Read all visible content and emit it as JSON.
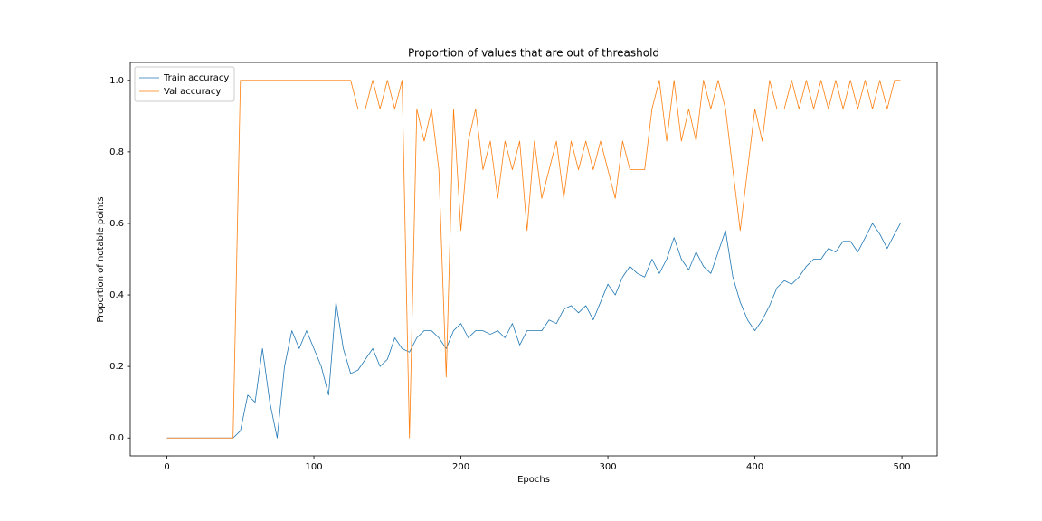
{
  "chart_data": {
    "type": "line",
    "title": "Proportion of values that are out of threashold",
    "x_label": "Epochs",
    "y_label": "Proportion of notable points",
    "x": [
      0,
      5,
      10,
      15,
      20,
      25,
      30,
      35,
      40,
      45,
      50,
      55,
      60,
      65,
      70,
      75,
      80,
      85,
      90,
      95,
      100,
      105,
      110,
      115,
      120,
      125,
      130,
      135,
      140,
      145,
      150,
      155,
      160,
      165,
      170,
      175,
      180,
      185,
      190,
      195,
      200,
      205,
      210,
      215,
      220,
      225,
      230,
      235,
      240,
      245,
      250,
      255,
      260,
      265,
      270,
      275,
      280,
      285,
      290,
      295,
      300,
      305,
      310,
      315,
      320,
      325,
      330,
      335,
      340,
      345,
      350,
      355,
      360,
      365,
      370,
      375,
      380,
      385,
      390,
      395,
      400,
      405,
      410,
      415,
      420,
      425,
      430,
      435,
      440,
      445,
      450,
      455,
      460,
      465,
      470,
      475,
      480,
      485,
      490,
      495,
      499
    ],
    "series": [
      {
        "name": "Train accuracy",
        "color": "#1f77b4",
        "values": [
          0,
          0,
          0,
          0,
          0,
          0,
          0,
          0,
          0,
          0,
          0.02,
          0.12,
          0.1,
          0.25,
          0.1,
          0,
          0.2,
          0.3,
          0.25,
          0.3,
          0.25,
          0.2,
          0.12,
          0.38,
          0.25,
          0.18,
          0.19,
          0.22,
          0.25,
          0.2,
          0.22,
          0.28,
          0.25,
          0.24,
          0.28,
          0.3,
          0.3,
          0.28,
          0.25,
          0.3,
          0.32,
          0.28,
          0.3,
          0.3,
          0.29,
          0.3,
          0.28,
          0.32,
          0.26,
          0.3,
          0.3,
          0.3,
          0.33,
          0.32,
          0.36,
          0.37,
          0.35,
          0.37,
          0.33,
          0.38,
          0.43,
          0.4,
          0.45,
          0.48,
          0.46,
          0.45,
          0.5,
          0.46,
          0.5,
          0.56,
          0.5,
          0.47,
          0.52,
          0.48,
          0.46,
          0.52,
          0.58,
          0.45,
          0.38,
          0.33,
          0.3,
          0.33,
          0.37,
          0.42,
          0.44,
          0.43,
          0.45,
          0.48,
          0.5,
          0.5,
          0.53,
          0.52,
          0.55,
          0.55,
          0.52,
          0.56,
          0.6,
          0.57,
          0.53,
          0.57,
          0.6
        ]
      },
      {
        "name": "Val accuracy",
        "color": "#ff7f0e",
        "values": [
          0,
          0,
          0,
          0,
          0,
          0,
          0,
          0,
          0,
          0,
          1,
          1,
          1,
          1,
          1,
          1,
          1,
          1,
          1,
          1,
          1,
          1,
          1,
          1,
          1,
          1,
          0.92,
          0.92,
          1,
          0.92,
          1,
          0.92,
          1,
          0,
          0.92,
          0.83,
          0.92,
          0.75,
          0.17,
          0.92,
          0.58,
          0.83,
          0.92,
          0.75,
          0.83,
          0.67,
          0.83,
          0.75,
          0.83,
          0.58,
          0.83,
          0.67,
          0.75,
          0.83,
          0.67,
          0.83,
          0.75,
          0.83,
          0.75,
          0.83,
          0.75,
          0.67,
          0.83,
          0.75,
          0.75,
          0.75,
          0.92,
          1,
          0.83,
          1,
          0.83,
          0.92,
          0.83,
          1,
          0.92,
          1,
          0.92,
          0.75,
          0.58,
          0.75,
          0.92,
          0.83,
          1,
          0.92,
          0.92,
          1,
          0.92,
          1,
          0.92,
          1,
          0.92,
          1,
          0.92,
          1,
          0.92,
          1,
          0.92,
          1,
          0.92,
          1,
          1
        ]
      }
    ],
    "xlim": [
      -24.95,
      523.95
    ],
    "ylim": [
      -0.05,
      1.05
    ],
    "xticks": [
      0,
      100,
      200,
      300,
      400,
      500
    ],
    "yticks": [
      {
        "value": 0,
        "label": "0.0"
      },
      {
        "value": 0.2,
        "label": "0.2"
      },
      {
        "value": 0.4,
        "label": "0.4"
      },
      {
        "value": 0.6,
        "label": "0.6"
      },
      {
        "value": 0.8,
        "label": "0.8"
      },
      {
        "value": 1,
        "label": "1.0"
      }
    ],
    "legend": "upper left",
    "grid": false
  }
}
